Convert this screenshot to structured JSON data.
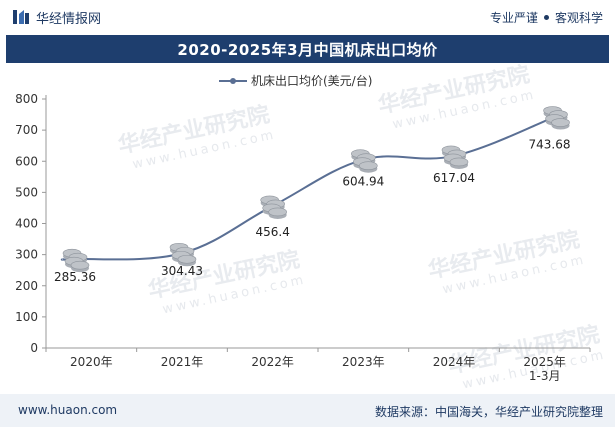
{
  "header": {
    "brand": "华经情报网",
    "tagline_left": "专业严谨",
    "tagline_right": "客观科学"
  },
  "footer": {
    "website": "www.huaon.com",
    "source": "数据来源：中国海关，华经产业研究院整理"
  },
  "colors": {
    "brand_navy": "#1e3e6e",
    "line": "#5a6f94",
    "coin": "#bfc3c8"
  },
  "watermark": {
    "text": "华经产业研究院",
    "url": "www.huaon.com"
  },
  "chart_data": {
    "type": "line",
    "title": "2020-2025年3月中国机床出口均价",
    "legend": "机床出口均价(美元/台)",
    "legend_position": "top-center",
    "categories": [
      "2020年",
      "2021年",
      "2022年",
      "2023年",
      "2024年",
      "2025年\n1-3月"
    ],
    "values": [
      285.36,
      304.43,
      456.4,
      604.94,
      617.04,
      743.68
    ],
    "value_labels": [
      "285.36",
      "304.43",
      "456.4",
      "604.94",
      "617.04",
      "743.68"
    ],
    "ylim": [
      0,
      800
    ],
    "yticks": [
      0,
      100,
      200,
      300,
      400,
      500,
      600,
      700,
      800
    ],
    "xlabel": "",
    "ylabel": "",
    "grid": false,
    "smooth": true
  }
}
